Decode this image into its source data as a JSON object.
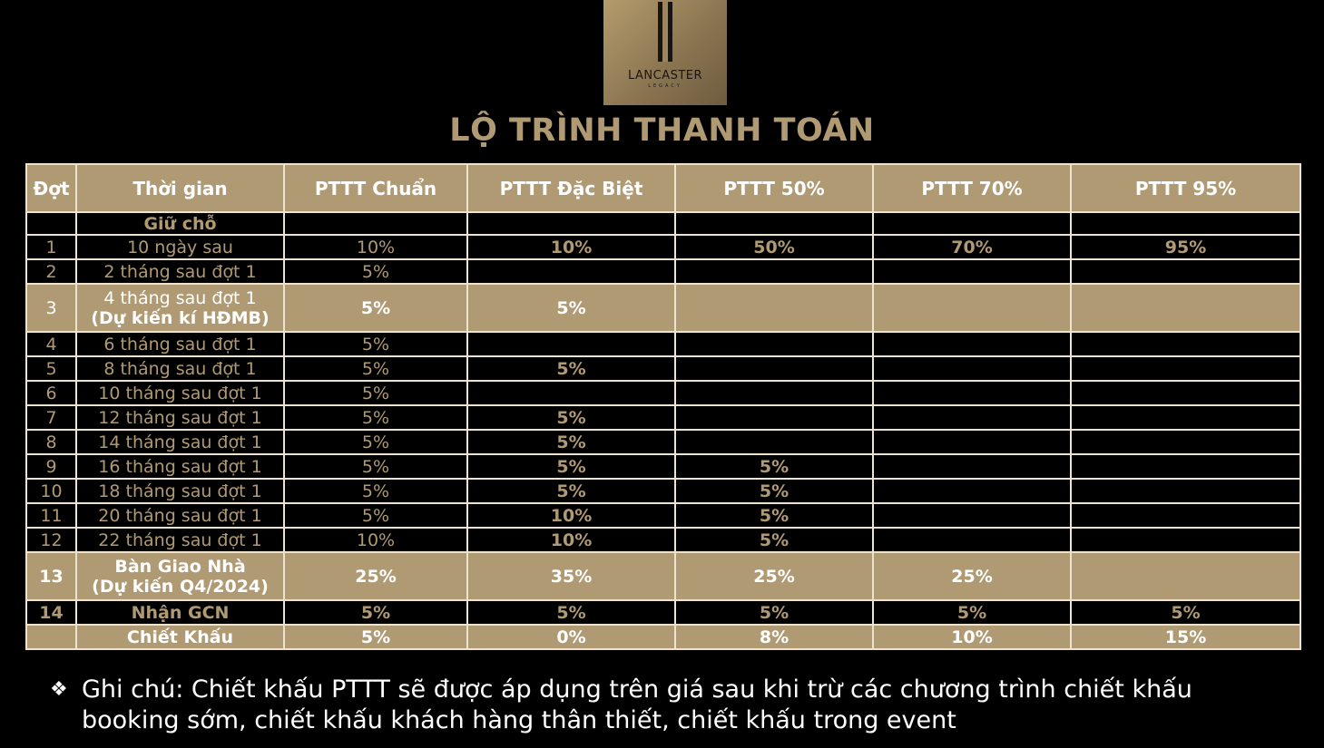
{
  "logo": {
    "brand": "LANCASTER",
    "sub": "LEGACY"
  },
  "title": "LỘ TRÌNH THANH TOÁN",
  "headers": [
    "Đợt",
    "Thời gian",
    "PTTT Chuẩn",
    "PTTT Đặc Biệt",
    "PTTT 50%",
    "PTTT 70%",
    "PTTT 95%"
  ],
  "rows": [
    {
      "style": "dark",
      "dot": "",
      "time": "Giữ chỗ",
      "c1": "",
      "c2": "",
      "c3": "",
      "c4": "",
      "c5": ""
    },
    {
      "style": "dark",
      "dot": "1",
      "time": "10 ngày sau",
      "c1": "10%",
      "c2": "10%",
      "c3": "50%",
      "c4": "70%",
      "c5": "95%"
    },
    {
      "style": "dark",
      "dot": "2",
      "time": "2 tháng sau đợt 1",
      "c1": "5%",
      "c2": "",
      "c3": "",
      "c4": "",
      "c5": ""
    },
    {
      "style": "gold",
      "dot": "3",
      "time": "4 tháng sau đợt 1",
      "time2": "(Dự kiến kí HĐMB)",
      "c1": "5%",
      "c2": "5%",
      "c3": "",
      "c4": "",
      "c5": ""
    },
    {
      "style": "dark",
      "dot": "4",
      "time": "6 tháng sau đợt 1",
      "c1": "5%",
      "c2": "",
      "c3": "",
      "c4": "",
      "c5": ""
    },
    {
      "style": "dark",
      "dot": "5",
      "time": "8 tháng sau đợt 1",
      "c1": "5%",
      "c2": "5%",
      "c3": "",
      "c4": "",
      "c5": ""
    },
    {
      "style": "dark",
      "dot": "6",
      "time": "10 tháng sau đợt 1",
      "c1": "5%",
      "c2": "",
      "c3": "",
      "c4": "",
      "c5": ""
    },
    {
      "style": "dark",
      "dot": "7",
      "time": "12 tháng sau đợt 1",
      "c1": "5%",
      "c2": "5%",
      "c3": "",
      "c4": "",
      "c5": ""
    },
    {
      "style": "dark",
      "dot": "8",
      "time": "14 tháng sau đợt 1",
      "c1": "5%",
      "c2": "5%",
      "c3": "",
      "c4": "",
      "c5": ""
    },
    {
      "style": "dark",
      "dot": "9",
      "time": "16 tháng sau đợt 1",
      "c1": "5%",
      "c2": "5%",
      "c3": "5%",
      "c4": "",
      "c5": ""
    },
    {
      "style": "dark",
      "dot": "10",
      "time": "18 tháng sau đợt 1",
      "c1": "5%",
      "c2": "5%",
      "c3": "5%",
      "c4": "",
      "c5": ""
    },
    {
      "style": "dark",
      "dot": "11",
      "time": "20 tháng sau đợt 1",
      "c1": "5%",
      "c2": "10%",
      "c3": "5%",
      "c4": "",
      "c5": ""
    },
    {
      "style": "dark",
      "dot": "12",
      "time": "22 tháng sau đợt 1",
      "c1": "10%",
      "c2": "10%",
      "c3": "5%",
      "c4": "",
      "c5": ""
    },
    {
      "style": "gold",
      "dot": "13",
      "time": "Bàn Giao Nhà",
      "time2": "(Dự kiến Q4/2024)",
      "c1": "25%",
      "c2": "35%",
      "c3": "25%",
      "c4": "25%",
      "c5": ""
    },
    {
      "style": "dark",
      "dot": "14",
      "time": "Nhận GCN",
      "c1": "5%",
      "c2": "5%",
      "c3": "5%",
      "c4": "5%",
      "c5": "5%"
    },
    {
      "style": "gold",
      "dot": "",
      "time": "Chiết Khấu",
      "c1": "5%",
      "c2": "0%",
      "c3": "8%",
      "c4": "10%",
      "c5": "15%"
    }
  ],
  "note": {
    "bullet": "❖",
    "line1": "Ghi chú: Chiết khấu PTTT sẽ được áp dụng trên giá sau khi trừ các chương trình chiết khấu",
    "line2": "booking sớm, chiết khấu khách hàng thân thiết, chiết khấu trong event"
  }
}
